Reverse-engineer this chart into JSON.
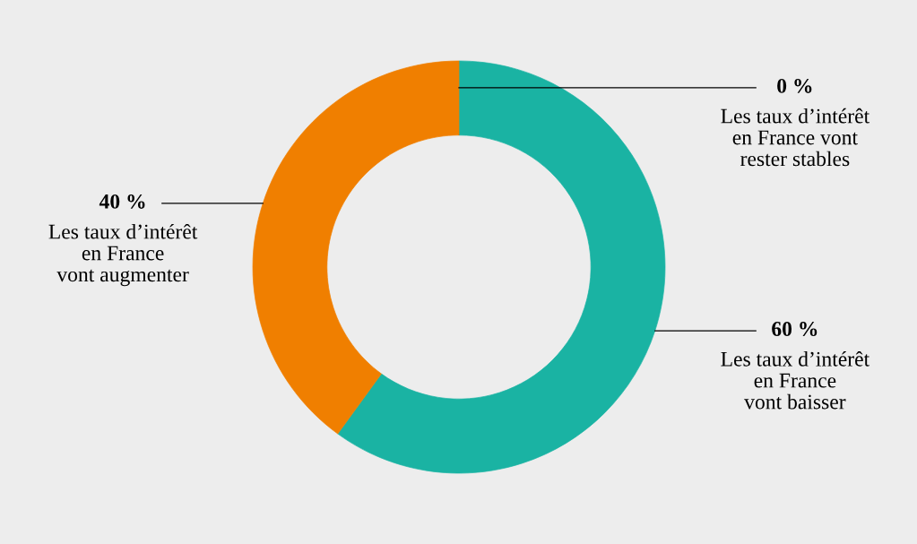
{
  "chart_data": {
    "type": "donut",
    "categories": [
      "Les taux d’intérêt\nen France vont\nrester stables",
      "Les taux d’intérêt\nen France\nvont baisser",
      "Les taux d’intérêt\nen France\nvont augmenter"
    ],
    "values": [
      0,
      60,
      40
    ],
    "colors": [
      "#e8101c",
      "#1ab3a3",
      "#f07f00"
    ],
    "value_labels": [
      "0 %",
      "60 %",
      "40 %"
    ],
    "legend": false
  }
}
